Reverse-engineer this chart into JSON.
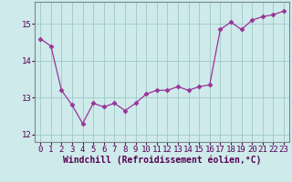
{
  "x": [
    0,
    1,
    2,
    3,
    4,
    5,
    6,
    7,
    8,
    9,
    10,
    11,
    12,
    13,
    14,
    15,
    16,
    17,
    18,
    19,
    20,
    21,
    22,
    23
  ],
  "y": [
    14.6,
    14.4,
    13.2,
    12.8,
    12.3,
    12.85,
    12.75,
    12.85,
    12.65,
    12.85,
    13.1,
    13.2,
    13.2,
    13.3,
    13.2,
    13.3,
    13.35,
    14.85,
    15.05,
    14.85,
    15.1,
    15.2,
    15.25,
    15.35
  ],
  "line_color": "#993399",
  "marker": "D",
  "marker_size": 2.5,
  "xlabel": "Windchill (Refroidissement éolien,°C)",
  "xlim": [
    -0.5,
    23.5
  ],
  "ylim": [
    11.8,
    15.6
  ],
  "yticks": [
    12,
    13,
    14,
    15
  ],
  "xticks": [
    0,
    1,
    2,
    3,
    4,
    5,
    6,
    7,
    8,
    9,
    10,
    11,
    12,
    13,
    14,
    15,
    16,
    17,
    18,
    19,
    20,
    21,
    22,
    23
  ],
  "background_color": "#ceeaea",
  "grid_color": "#a0c8c8",
  "tick_fontsize": 6.5,
  "xlabel_fontsize": 7
}
